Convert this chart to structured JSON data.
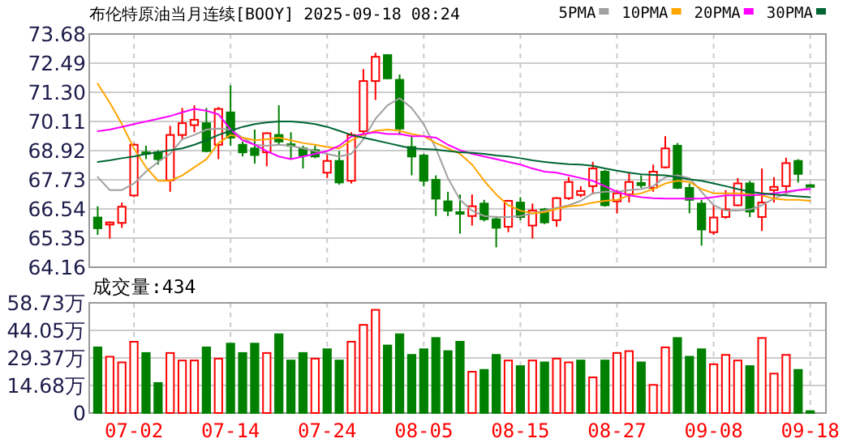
{
  "chart_data": [
    {
      "type": "candlestick",
      "title": "布伦特原油当月连续[BOOY] 2025-09-18 08:24",
      "ohlc": [
        [
          66.19,
          66.65,
          65.48,
          65.75
        ],
        [
          65.9,
          66.03,
          65.33,
          65.99
        ],
        [
          65.97,
          66.8,
          65.77,
          66.63
        ],
        [
          67.09,
          69.21,
          67.02,
          69.16
        ],
        [
          68.85,
          69.12,
          68.57,
          68.81
        ],
        [
          68.85,
          68.94,
          68.35,
          68.57
        ],
        [
          67.71,
          69.93,
          67.24,
          69.56
        ],
        [
          69.56,
          70.66,
          69.38,
          70.04
        ],
        [
          69.96,
          70.77,
          69.67,
          70.18
        ],
        [
          70.04,
          70.66,
          68.85,
          68.9
        ],
        [
          69.16,
          70.7,
          68.57,
          70.62
        ],
        [
          70.48,
          71.59,
          69.12,
          69.45
        ],
        [
          69.16,
          69.29,
          68.68,
          68.85
        ],
        [
          69.01,
          69.78,
          68.39,
          68.74
        ],
        [
          68.85,
          69.67,
          68.28,
          69.63
        ],
        [
          69.56,
          70.77,
          69.16,
          69.29
        ],
        [
          69.18,
          69.67,
          68.57,
          69.14
        ],
        [
          69.01,
          69.12,
          68.19,
          68.72
        ],
        [
          68.94,
          69.12,
          68.61,
          68.68
        ],
        [
          68.02,
          68.79,
          67.8,
          68.5
        ],
        [
          68.5,
          68.9,
          67.53,
          67.62
        ],
        [
          67.69,
          69.67,
          67.58,
          69.56
        ],
        [
          69.71,
          72.25,
          69.56,
          71.76
        ],
        [
          71.76,
          72.91,
          70.99,
          72.75
        ],
        [
          72.82,
          72.86,
          71.83,
          71.87
        ],
        [
          71.81,
          72.03,
          69.56,
          69.82
        ],
        [
          69.07,
          69.51,
          67.91,
          68.68
        ],
        [
          68.72,
          68.79,
          67.46,
          67.69
        ],
        [
          67.73,
          67.91,
          66.25,
          66.96
        ],
        [
          66.85,
          67.24,
          66.25,
          66.47
        ],
        [
          66.41,
          67.13,
          65.53,
          66.34
        ],
        [
          66.25,
          67.13,
          65.86,
          66.65
        ],
        [
          66.76,
          66.91,
          66.03,
          66.12
        ],
        [
          66.12,
          66.25,
          64.97,
          65.77
        ],
        [
          65.81,
          66.91,
          65.59,
          66.87
        ],
        [
          66.8,
          67.02,
          66.08,
          66.21
        ],
        [
          65.86,
          66.76,
          65.33,
          66.47
        ],
        [
          66.52,
          66.58,
          65.92,
          65.99
        ],
        [
          66.08,
          67.02,
          65.81,
          66.98
        ],
        [
          66.98,
          67.84,
          66.91,
          67.64
        ],
        [
          67.11,
          67.47,
          67.02,
          67.27
        ],
        [
          67.47,
          68.46,
          67.13,
          68.19
        ],
        [
          68.06,
          68.13,
          66.63,
          66.69
        ],
        [
          66.85,
          67.31,
          66.36,
          67.18
        ],
        [
          67.13,
          68.02,
          66.8,
          67.64
        ],
        [
          67.6,
          67.91,
          67.4,
          67.51
        ],
        [
          67.4,
          68.35,
          67.24,
          68.06
        ],
        [
          68.24,
          69.51,
          68.19,
          69.01
        ],
        [
          69.12,
          69.23,
          67.35,
          67.4
        ],
        [
          67.4,
          67.58,
          66.36,
          66.91
        ],
        [
          66.76,
          66.91,
          65.04,
          65.7
        ],
        [
          65.59,
          66.69,
          65.48,
          66.19
        ],
        [
          66.21,
          67.31,
          66.14,
          66.52
        ],
        [
          66.69,
          67.8,
          66.65,
          67.58
        ],
        [
          67.58,
          67.69,
          66.21,
          66.43
        ],
        [
          66.21,
          68.19,
          65.64,
          66.8
        ],
        [
          67.31,
          67.84,
          66.8,
          67.44
        ],
        [
          67.47,
          68.63,
          67.13,
          68.41
        ],
        [
          68.5,
          68.57,
          67.62,
          67.97
        ],
        [
          67.51,
          67.55,
          67.42,
          67.44
        ]
      ],
      "colors": [
        "#008000",
        "#ff0000",
        "#ff0000",
        "#ff0000",
        "#008000",
        "#008000",
        "#ff0000",
        "#ff0000",
        "#ff0000",
        "#008000",
        "#ff0000",
        "#008000",
        "#008000",
        "#008000",
        "#ff0000",
        "#008000",
        "#008000",
        "#008000",
        "#008000",
        "#ff0000",
        "#008000",
        "#ff0000",
        "#ff0000",
        "#ff0000",
        "#008000",
        "#008000",
        "#008000",
        "#008000",
        "#008000",
        "#008000",
        "#008000",
        "#ff0000",
        "#008000",
        "#008000",
        "#ff0000",
        "#008000",
        "#ff0000",
        "#008000",
        "#ff0000",
        "#ff0000",
        "#ff0000",
        "#ff0000",
        "#008000",
        "#ff0000",
        "#ff0000",
        "#008000",
        "#ff0000",
        "#ff0000",
        "#008000",
        "#008000",
        "#008000",
        "#ff0000",
        "#ff0000",
        "#ff0000",
        "#008000",
        "#ff0000",
        "#ff0000",
        "#ff0000",
        "#008000",
        "#008000"
      ],
      "series": [
        {
          "name": "5PMA",
          "type": "line",
          "color": "#a0a0a0",
          "values": [
            67.84,
            67.31,
            67.31,
            67.58,
            68.06,
            68.46,
            68.79,
            69.38,
            69.56,
            69.78,
            69.82,
            69.78,
            69.45,
            69.16,
            69.12,
            69.16,
            69.12,
            69.01,
            68.9,
            68.79,
            68.68,
            68.79,
            69.38,
            70.22,
            70.77,
            71.06,
            70.66,
            70.0,
            69.01,
            67.8,
            66.91,
            66.47,
            66.25,
            66.21,
            66.21,
            66.25,
            66.36,
            66.47,
            66.58,
            66.69,
            66.87,
            67.18,
            67.24,
            67.24,
            67.31,
            67.35,
            67.47,
            67.84,
            67.91,
            67.8,
            67.24,
            66.69,
            66.47,
            66.47,
            66.52,
            66.69,
            66.96,
            67.18,
            67.31,
            67.4
          ]
        },
        {
          "name": "10PMA",
          "type": "line",
          "color": "#ffa500",
          "values": [
            71.65,
            70.88,
            70.0,
            69.01,
            68.24,
            67.69,
            67.69,
            67.91,
            68.24,
            68.57,
            69.23,
            69.56,
            69.45,
            69.34,
            69.38,
            69.45,
            69.34,
            69.23,
            69.16,
            69.07,
            69.01,
            69.34,
            69.56,
            69.73,
            69.78,
            69.73,
            69.6,
            69.51,
            69.23,
            69.01,
            68.79,
            68.35,
            67.69,
            67.13,
            66.69,
            66.47,
            66.36,
            66.41,
            66.54,
            66.65,
            66.69,
            66.8,
            66.87,
            66.91,
            67.09,
            67.18,
            67.35,
            67.58,
            67.69,
            67.64,
            67.35,
            67.18,
            67.18,
            67.18,
            67.13,
            67.09,
            66.96,
            66.91,
            66.91,
            66.87
          ]
        },
        {
          "name": "20PMA",
          "type": "line",
          "color": "#ff00ff",
          "values": [
            69.71,
            69.78,
            69.89,
            70.0,
            70.11,
            70.22,
            70.33,
            70.48,
            70.62,
            70.55,
            70.4,
            69.78,
            69.34,
            69.16,
            68.9,
            68.68,
            68.57,
            68.68,
            68.79,
            68.9,
            69.12,
            69.49,
            69.6,
            69.67,
            69.6,
            69.6,
            69.51,
            69.51,
            69.45,
            69.16,
            68.94,
            68.79,
            68.68,
            68.57,
            68.46,
            68.35,
            68.19,
            68.06,
            68.02,
            67.91,
            67.8,
            67.69,
            67.47,
            67.24,
            67.09,
            67.02,
            66.98,
            66.96,
            66.96,
            66.96,
            66.96,
            67.02,
            67.09,
            67.09,
            67.09,
            67.13,
            67.18,
            67.24,
            67.31,
            67.35
          ]
        },
        {
          "name": "30PMA",
          "type": "line",
          "color": "#006633",
          "values": [
            68.46,
            68.52,
            68.61,
            68.68,
            68.79,
            68.85,
            68.94,
            69.01,
            69.16,
            69.34,
            69.56,
            69.73,
            69.89,
            70.0,
            70.07,
            70.11,
            70.11,
            70.07,
            70.0,
            69.89,
            69.73,
            69.56,
            69.45,
            69.34,
            69.23,
            69.12,
            69.01,
            68.99,
            68.96,
            68.9,
            68.85,
            68.83,
            68.79,
            68.72,
            68.68,
            68.61,
            68.52,
            68.46,
            68.41,
            68.37,
            68.35,
            68.3,
            68.19,
            68.1,
            68.02,
            67.95,
            67.93,
            67.91,
            67.84,
            67.75,
            67.69,
            67.58,
            67.47,
            67.35,
            67.24,
            67.18,
            67.13,
            67.09,
            67.05,
            67.02
          ]
        }
      ],
      "ylim": [
        64.16,
        73.68
      ],
      "yticks": [
        64.16,
        65.35,
        66.54,
        67.73,
        68.92,
        70.11,
        {
          "value": 71.3,
          "label": "71.30"
        },
        72.49,
        73.68
      ],
      "grid": true,
      "legend": "top right",
      "tick_labels": "y"
    },
    {
      "type": "bar",
      "title": "成交量:434",
      "categories": [
        null,
        null,
        null,
        "07-02",
        null,
        null,
        null,
        null,
        null,
        null,
        null,
        "07-14",
        null,
        null,
        null,
        null,
        null,
        null,
        null,
        "07-24",
        null,
        null,
        null,
        null,
        null,
        null,
        null,
        "08-05",
        null,
        null,
        null,
        null,
        null,
        null,
        null,
        "08-15",
        null,
        null,
        null,
        null,
        null,
        null,
        null,
        "08-27",
        null,
        null,
        null,
        null,
        null,
        null,
        null,
        "09-08",
        null,
        null,
        null,
        null,
        null,
        null,
        null,
        "09-18"
      ],
      "values": [
        35,
        30,
        27,
        38,
        32,
        16,
        32,
        28,
        28,
        35,
        29,
        37,
        32,
        37,
        32,
        42,
        28,
        32,
        29,
        34,
        28,
        38,
        47,
        55,
        36,
        42,
        31,
        34,
        40,
        33,
        38,
        22,
        23,
        31,
        28,
        25,
        28,
        27,
        29,
        27,
        28,
        19,
        28,
        32,
        33,
        27,
        15,
        35,
        40,
        30,
        34,
        26,
        31,
        28,
        25,
        40,
        21,
        31,
        23,
        1
      ],
      "colors": [
        "#008000",
        "#ff0000",
        "#ff0000",
        "#ff0000",
        "#008000",
        "#008000",
        "#ff0000",
        "#ff0000",
        "#ff0000",
        "#008000",
        "#ff0000",
        "#008000",
        "#008000",
        "#008000",
        "#ff0000",
        "#008000",
        "#008000",
        "#008000",
        "#ff0000",
        "#008000",
        "#008000",
        "#ff0000",
        "#ff0000",
        "#ff0000",
        "#008000",
        "#008000",
        "#008000",
        "#008000",
        "#008000",
        "#008000",
        "#008000",
        "#ff0000",
        "#008000",
        "#008000",
        "#ff0000",
        "#008000",
        "#ff0000",
        "#008000",
        "#ff0000",
        "#ff0000",
        "#008000",
        "#ff0000",
        "#008000",
        "#ff0000",
        "#ff0000",
        "#008000",
        "#ff0000",
        "#ff0000",
        "#008000",
        "#008000",
        "#008000",
        "#ff0000",
        "#ff0000",
        "#ff0000",
        "#008000",
        "#ff0000",
        "#ff0000",
        "#ff0000",
        "#008000",
        "#008000"
      ],
      "ylim": [
        0,
        58.73
      ],
      "yticks": [
        0,
        {
          "value": 14.68,
          "label": "14.68万"
        },
        {
          "value": 29.37,
          "label": "29.37万"
        },
        {
          "value": 44.05,
          "label": "44.05万"
        },
        {
          "value": 58.73,
          "label": "58.73万"
        }
      ],
      "grid": true
    }
  ]
}
